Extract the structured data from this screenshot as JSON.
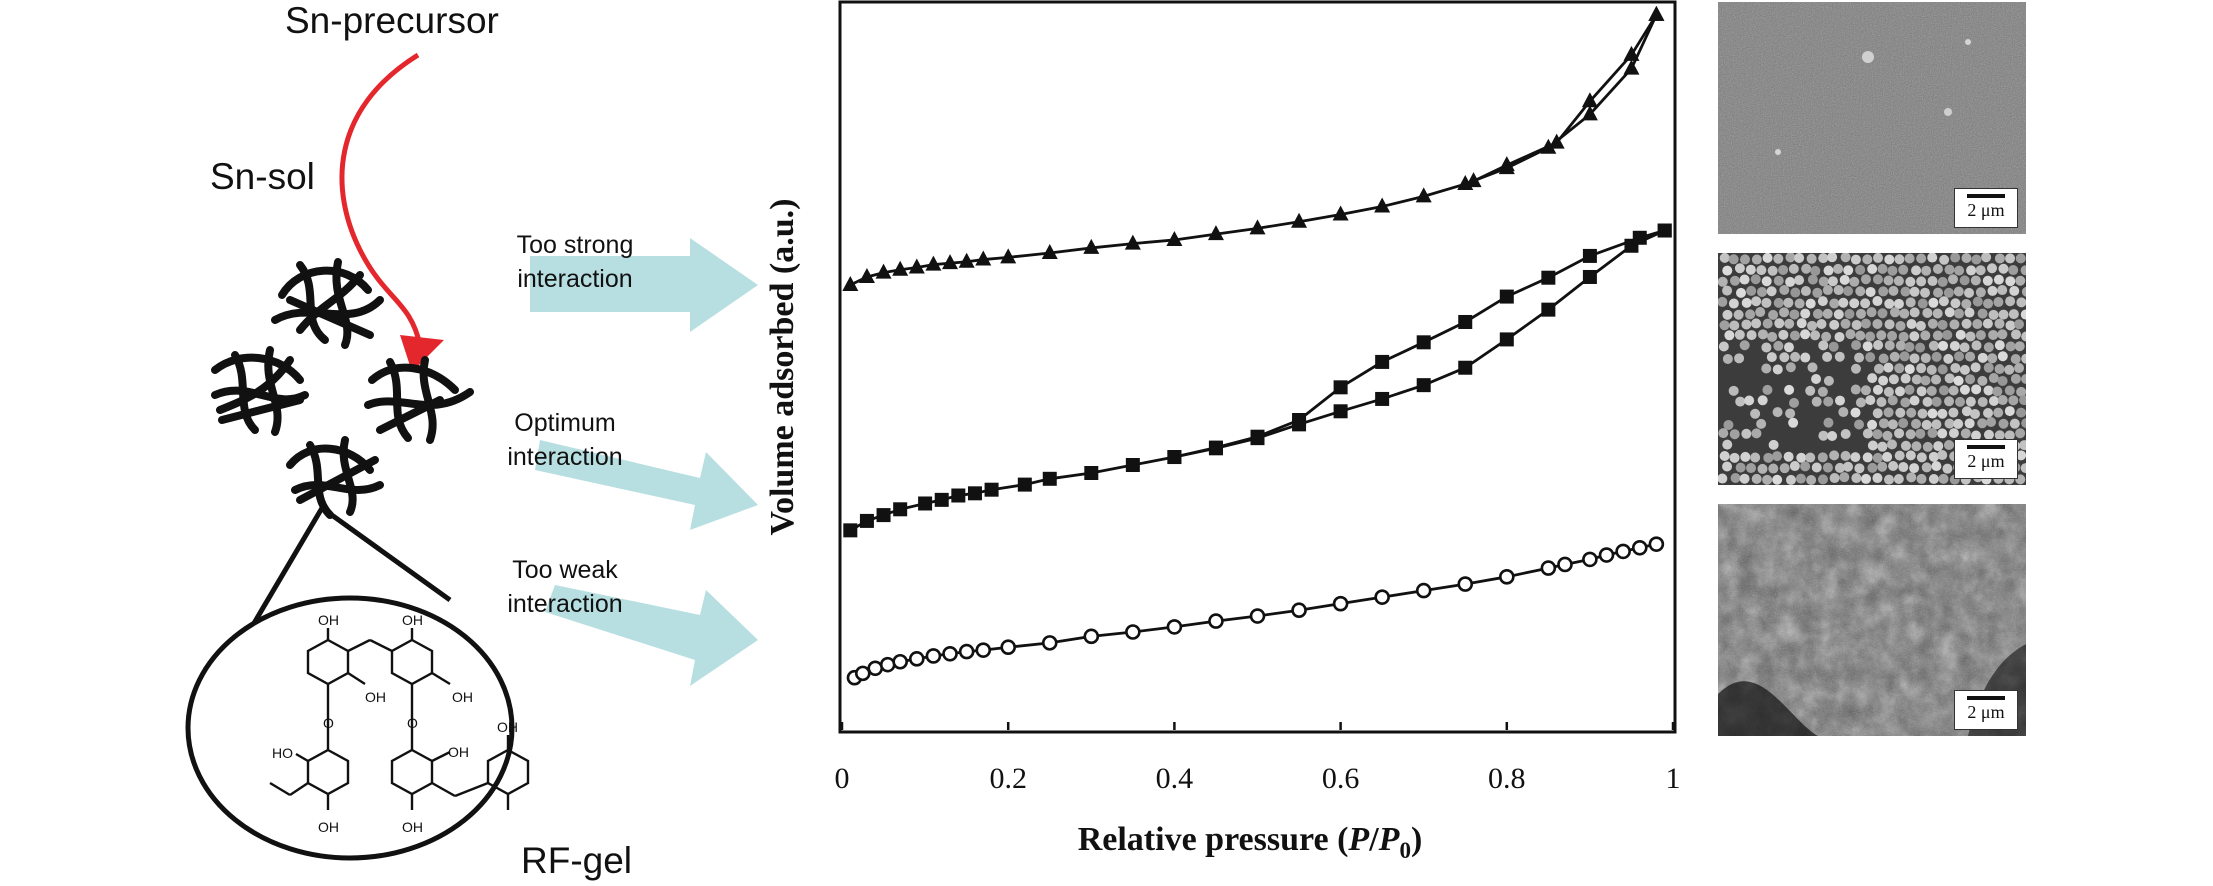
{
  "scheme": {
    "precursor_label": "Sn-precursor",
    "sol_label": "Sn-sol",
    "gel_label": "RF-gel",
    "arrows": [
      {
        "label_line1": "Too strong",
        "label_line2": "interaction"
      },
      {
        "label_line1": "Optimum",
        "label_line2": "interaction"
      },
      {
        "label_line1": "Too weak",
        "label_line2": "interaction"
      }
    ],
    "molecule_labels": [
      "OH",
      "OH",
      "OH",
      "OH",
      "O",
      "O",
      "HO",
      "OH",
      "OH",
      "OH",
      "OH"
    ],
    "colors": {
      "curved_arrow": "#e4272c",
      "block_arrows": "#b7dfe1"
    }
  },
  "chart_data": {
    "type": "scatter",
    "xlabel_main": "Relative pressure (",
    "xlabel_p": "P",
    "xlabel_slash": "/",
    "xlabel_p0": "P",
    "xlabel_sub": "0",
    "xlabel_close": ")",
    "ylabel": "Volume adsorbed (a.u.)",
    "xlim": [
      0,
      1
    ],
    "ylim": [
      0,
      100
    ],
    "xticks": [
      0,
      0.2,
      0.4,
      0.6,
      0.8,
      1
    ],
    "xtick_labels": [
      "0",
      "0.2",
      "0.4",
      "0.6",
      "0.8",
      "1"
    ],
    "yticks_shown": false,
    "series": [
      {
        "marker": "triangle",
        "adsorption": {
          "x": [
            0.01,
            0.03,
            0.05,
            0.07,
            0.09,
            0.11,
            0.13,
            0.15,
            0.17,
            0.2,
            0.25,
            0.3,
            0.35,
            0.4,
            0.45,
            0.5,
            0.55,
            0.6,
            0.65,
            0.7,
            0.75,
            0.8,
            0.85,
            0.9,
            0.95,
            0.98
          ],
          "y": [
            61.3,
            62.4,
            63.0,
            63.4,
            63.7,
            64.1,
            64.3,
            64.5,
            64.8,
            65.1,
            65.7,
            66.4,
            67.0,
            67.5,
            68.3,
            69.1,
            70.0,
            71.0,
            72.1,
            73.5,
            75.2,
            77.4,
            80.2,
            84.8,
            91.1,
            98.5
          ]
        },
        "desorption": {
          "x": [
            0.98,
            0.95,
            0.9,
            0.86,
            0.8,
            0.76
          ],
          "y": [
            98.5,
            93.0,
            86.6,
            80.9,
            77.8,
            75.6
          ]
        }
      },
      {
        "marker": "square",
        "adsorption": {
          "x": [
            0.01,
            0.03,
            0.05,
            0.07,
            0.1,
            0.12,
            0.14,
            0.16,
            0.18,
            0.22,
            0.25,
            0.3,
            0.35,
            0.4,
            0.45,
            0.5,
            0.55,
            0.6,
            0.65,
            0.7,
            0.75,
            0.8,
            0.85,
            0.9,
            0.95,
            0.99
          ],
          "y": [
            27.5,
            28.8,
            29.6,
            30.4,
            31.2,
            31.7,
            32.3,
            32.6,
            33.1,
            33.8,
            34.6,
            35.4,
            36.5,
            37.6,
            38.8,
            40.2,
            42.1,
            43.9,
            45.6,
            47.5,
            49.9,
            53.8,
            57.9,
            62.4,
            66.7,
            68.8
          ]
        },
        "desorption": {
          "x": [
            0.99,
            0.96,
            0.9,
            0.85,
            0.8,
            0.75,
            0.7,
            0.65,
            0.6,
            0.55,
            0.5,
            0.45,
            0.4
          ],
          "y": [
            68.8,
            67.8,
            65.3,
            62.3,
            59.7,
            56.2,
            53.4,
            50.7,
            47.2,
            42.7,
            40.4,
            38.9,
            37.6
          ]
        }
      },
      {
        "marker": "circle-open",
        "adsorption": {
          "x": [
            0.015,
            0.025,
            0.04,
            0.055,
            0.07,
            0.09,
            0.11,
            0.13,
            0.15,
            0.17,
            0.2,
            0.25,
            0.3,
            0.35,
            0.4,
            0.45,
            0.5,
            0.55,
            0.6,
            0.65,
            0.7,
            0.75,
            0.8,
            0.85,
            0.87,
            0.9,
            0.92,
            0.94,
            0.96,
            0.98
          ],
          "y": [
            7.2,
            7.8,
            8.5,
            9.0,
            9.4,
            9.8,
            10.2,
            10.5,
            10.8,
            11.0,
            11.4,
            12.0,
            12.9,
            13.5,
            14.2,
            15.0,
            15.7,
            16.5,
            17.4,
            18.3,
            19.2,
            20.1,
            21.1,
            22.3,
            22.8,
            23.5,
            24.1,
            24.6,
            25.1,
            25.6
          ]
        }
      }
    ]
  },
  "sem_images": [
    {
      "scale_label": "2 μm",
      "texture": "fine-granular"
    },
    {
      "scale_label": "2 μm",
      "texture": "spherical-particles"
    },
    {
      "scale_label": "2 μm",
      "texture": "rough-agglomerate"
    }
  ]
}
